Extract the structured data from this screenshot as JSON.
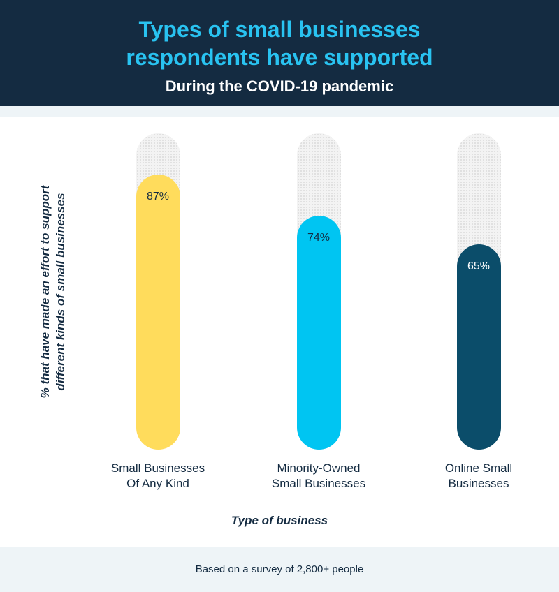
{
  "header": {
    "title_line1": "Types of small businesses",
    "title_line2": "respondents have supported",
    "subtitle": "During the COVID-19 pandemic"
  },
  "footer": {
    "note": "Based on a survey of 2,800+ people"
  },
  "colors": {
    "header_bg": "#142b41",
    "title": "#29c3f1",
    "text": "#142b41",
    "track": "#f3f3f3"
  },
  "chart_data": {
    "type": "bar",
    "orientation": "vertical",
    "title": "Types of small businesses respondents have supported",
    "subtitle": "During the COVID-19 pandemic",
    "xlabel": "Type of business",
    "ylabel_lines": [
      "% that have made an effort to support",
      "different kinds of small businesses"
    ],
    "ylim": [
      0,
      100
    ],
    "grid": false,
    "categories": [
      [
        "Small Businesses",
        "Of Any Kind"
      ],
      [
        "Minority-Owned",
        "Small Businesses"
      ],
      [
        "Online Small",
        "Businesses"
      ]
    ],
    "values": [
      87,
      74,
      65
    ],
    "value_labels": [
      "87%",
      "74%",
      "65%"
    ],
    "bar_colors": [
      "#ffdc5c",
      "#00c5f2",
      "#0b4d6a"
    ],
    "value_label_colors": [
      "#142b41",
      "#142b41",
      "#ffffff"
    ]
  }
}
